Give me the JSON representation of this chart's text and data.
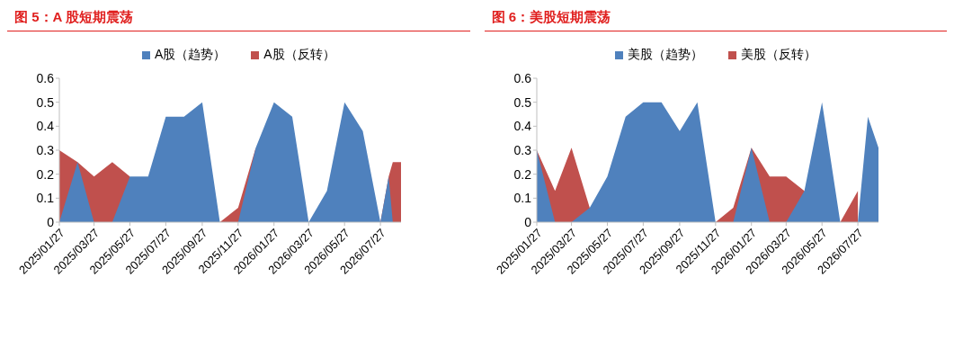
{
  "chart_data": [
    {
      "type": "area",
      "title": "图 5：A 股短期震荡",
      "x": [
        "2025-01-27",
        "2025-02-27",
        "2025-03-27",
        "2025-04-27",
        "2025-05-27",
        "2025-06-27",
        "2025-07-27",
        "2025-08-27",
        "2025-09-27",
        "2025-10-27",
        "2025-11-27",
        "2025-12-27",
        "2026-01-27",
        "2026-02-27",
        "2026-03-27",
        "2026-04-27",
        "2026-05-27",
        "2026-06-27",
        "2026-07-27",
        "2026-08-10",
        "2026-08-17",
        "2026-08-31"
      ],
      "series": [
        {
          "name": "A股（趋势）",
          "color": "#4f81bd",
          "values": [
            0,
            0.25,
            0,
            0,
            0.19,
            0.19,
            0.44,
            0.44,
            0.5,
            0,
            0,
            0.31,
            0.5,
            0.44,
            0,
            0.13,
            0.5,
            0.38,
            0,
            0.19,
            0,
            0
          ]
        },
        {
          "name": "A股（反转）",
          "color": "#c0504d",
          "values": [
            0.3,
            0.25,
            0.19,
            0.25,
            0.19,
            0,
            0,
            0,
            0,
            0,
            0.06,
            0.31,
            0,
            0,
            0,
            0,
            0,
            0,
            0,
            0.19,
            0.25,
            0.25
          ]
        }
      ],
      "xlim": [
        "2025-01-27",
        "2026-08-31"
      ],
      "xticks": [
        {
          "value": "2025-01-27",
          "label": "2025/01/27"
        },
        {
          "value": "2025-03-27",
          "label": "2025/03/27"
        },
        {
          "value": "2025-05-27",
          "label": "2025/05/27"
        },
        {
          "value": "2025-07-27",
          "label": "2025/07/27"
        },
        {
          "value": "2025-09-27",
          "label": "2025/09/27"
        },
        {
          "value": "2025-11-27",
          "label": "2025/11/27"
        },
        {
          "value": "2026-01-27",
          "label": "2026/01/27"
        },
        {
          "value": "2026-03-27",
          "label": "2026/03/27"
        },
        {
          "value": "2026-05-27",
          "label": "2026/05/27"
        },
        {
          "value": "2026-07-27",
          "label": "2026/07/27"
        }
      ],
      "ylim": [
        0,
        0.6
      ],
      "yticks": [
        0,
        0.1,
        0.2,
        0.3,
        0.4,
        0.5,
        0.6
      ],
      "legend": "top",
      "grid": false,
      "marker": "none"
    },
    {
      "type": "area",
      "title": "图 6：美股短期震荡",
      "x": [
        "2025-01-27",
        "2025-02-27",
        "2025-03-27",
        "2025-04-27",
        "2025-05-27",
        "2025-06-27",
        "2025-07-27",
        "2025-08-27",
        "2025-09-27",
        "2025-10-27",
        "2025-11-27",
        "2025-12-27",
        "2026-01-27",
        "2026-02-27",
        "2026-03-27",
        "2026-04-27",
        "2026-05-27",
        "2026-06-27",
        "2026-07-27",
        "2026-08-13",
        "2026-08-31"
      ],
      "series": [
        {
          "name": "美股（趋势）",
          "color": "#4f81bd",
          "values": [
            0.3,
            0,
            0,
            0.06,
            0.19,
            0.44,
            0.5,
            0.5,
            0.38,
            0.5,
            0,
            0,
            0.31,
            0,
            0,
            0.13,
            0.5,
            0,
            0,
            0.44,
            0.31
          ]
        },
        {
          "name": "美股（反转）",
          "color": "#c0504d",
          "values": [
            0.3,
            0.13,
            0.31,
            0.06,
            0,
            0,
            0,
            0,
            0,
            0,
            0,
            0.06,
            0.31,
            0.19,
            0.19,
            0.13,
            0,
            0,
            0.13,
            null,
            null
          ]
        }
      ],
      "xlim": [
        "2025-01-27",
        "2026-08-31"
      ],
      "xticks": [
        {
          "value": "2025-01-27",
          "label": "2025/01/27"
        },
        {
          "value": "2025-03-27",
          "label": "2025/03/27"
        },
        {
          "value": "2025-05-27",
          "label": "2025/05/27"
        },
        {
          "value": "2025-07-27",
          "label": "2025/07/27"
        },
        {
          "value": "2025-09-27",
          "label": "2025/09/27"
        },
        {
          "value": "2025-11-27",
          "label": "2025/11/27"
        },
        {
          "value": "2026-01-27",
          "label": "2026/01/27"
        },
        {
          "value": "2026-03-27",
          "label": "2026/03/27"
        },
        {
          "value": "2026-05-27",
          "label": "2026/05/27"
        },
        {
          "value": "2026-07-27",
          "label": "2026/07/27"
        }
      ],
      "ylim": [
        0,
        0.6
      ],
      "yticks": [
        0,
        0.1,
        0.2,
        0.3,
        0.4,
        0.5,
        0.6
      ],
      "legend": "top",
      "grid": false,
      "marker": "none"
    }
  ]
}
